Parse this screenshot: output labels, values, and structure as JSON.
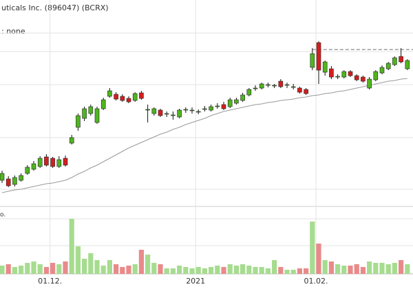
{
  "chart_data": {
    "type": "candlestick",
    "title": "uticals Inc. (896047) (BCRX)",
    "indicator_label": ": none",
    "volume_label": "o.",
    "categories": [
      null,
      null,
      null,
      null,
      null,
      null,
      null,
      null,
      "01.12.",
      null,
      null,
      null,
      null,
      null,
      null,
      null,
      null,
      null,
      null,
      null,
      null,
      null,
      null,
      null,
      null,
      null,
      null,
      null,
      null,
      null,
      null,
      "2021",
      null,
      null,
      null,
      null,
      null,
      null,
      null,
      null,
      null,
      null,
      null,
      null,
      null,
      null,
      null,
      null,
      null,
      null,
      "01.02.",
      null,
      null,
      null,
      null,
      null,
      null,
      null,
      null,
      null,
      null,
      null,
      null,
      null,
      null
    ],
    "open": [
      38,
      40,
      32,
      38,
      48,
      54,
      58,
      72,
      70,
      58,
      70,
      92,
      115,
      128,
      135,
      122,
      142,
      160,
      163,
      160,
      157,
      154,
      165,
      140,
      135,
      140,
      134,
      132,
      130,
      140,
      139,
      137,
      141,
      140,
      145,
      148,
      145,
      150,
      154,
      162,
      171,
      172,
      176,
      175,
      182,
      176,
      173,
      172,
      170,
      202,
      238,
      195,
      200,
      188,
      188,
      196,
      190,
      188,
      172,
      184,
      194,
      200,
      206,
      218,
      200
    ],
    "close": [
      48,
      30,
      42,
      45,
      57,
      62,
      70,
      60,
      58,
      68,
      60,
      100,
      132,
      142,
      145,
      142,
      155,
      168,
      156,
      154,
      152,
      164,
      157,
      141,
      142,
      132,
      135,
      133,
      140,
      141,
      140,
      138,
      142,
      145,
      146,
      142,
      155,
      155,
      162,
      170,
      172,
      178,
      177,
      176,
      174,
      177,
      174,
      166,
      164,
      222,
      198,
      210,
      188,
      189,
      196,
      190,
      184,
      182,
      185,
      196,
      202,
      208,
      216,
      210,
      212
    ],
    "high": [
      52,
      44,
      45,
      48,
      60,
      66,
      73,
      76,
      72,
      73,
      74,
      104,
      135,
      145,
      148,
      145,
      158,
      172,
      166,
      163,
      160,
      166,
      168,
      148,
      144,
      142,
      138,
      138,
      142,
      144,
      144,
      141,
      146,
      148,
      150,
      152,
      158,
      158,
      165,
      172,
      176,
      180,
      180,
      178,
      185,
      180,
      178,
      174,
      172,
      230,
      240,
      212,
      204,
      192,
      198,
      198,
      192,
      190,
      188,
      198,
      205,
      210,
      218,
      230,
      214
    ],
    "low": [
      34,
      28,
      29,
      36,
      46,
      52,
      56,
      58,
      56,
      56,
      58,
      90,
      110,
      124,
      132,
      120,
      140,
      158,
      154,
      152,
      150,
      152,
      155,
      122,
      132,
      130,
      130,
      126,
      128,
      136,
      135,
      134,
      138,
      138,
      142,
      140,
      143,
      148,
      152,
      160,
      168,
      170,
      173,
      172,
      172,
      172,
      170,
      164,
      162,
      198,
      178,
      190,
      185,
      185,
      186,
      188,
      182,
      180,
      170,
      182,
      192,
      198,
      204,
      208,
      198
    ],
    "moving_average": [
      20,
      22,
      24,
      25,
      27,
      29,
      31,
      33,
      34,
      36,
      38,
      42,
      47,
      51,
      56,
      60,
      65,
      70,
      75,
      80,
      85,
      89,
      93,
      97,
      101,
      105,
      108,
      112,
      115,
      119,
      122,
      125,
      128,
      132,
      135,
      138,
      140,
      142,
      144,
      146,
      148,
      149,
      151,
      152,
      154,
      155,
      156,
      158,
      159,
      161,
      162,
      164,
      165,
      167,
      168,
      170,
      172,
      174,
      176,
      178,
      180,
      182,
      183,
      185,
      186
    ],
    "volume": [
      12,
      14,
      10,
      12,
      16,
      18,
      14,
      10,
      16,
      14,
      18,
      80,
      40,
      22,
      30,
      20,
      12,
      20,
      14,
      10,
      12,
      14,
      35,
      28,
      16,
      14,
      8,
      8,
      12,
      10,
      8,
      10,
      8,
      10,
      12,
      10,
      14,
      12,
      14,
      12,
      10,
      10,
      8,
      20,
      10,
      6,
      6,
      8,
      8,
      76,
      44,
      20,
      18,
      14,
      12,
      12,
      14,
      10,
      18,
      16,
      16,
      14,
      16,
      20,
      14
    ],
    "reference_line": 228,
    "ylim": [
      0,
      300
    ],
    "volume_ylim": [
      0,
      100
    ],
    "price_grid": [
      25,
      100,
      177,
      225,
      252
    ],
    "volume_grid": [
      41,
      80
    ],
    "up_color": "#4fb51f",
    "down_color": "#d31f1f",
    "up_volume_color": "#a6dc8f",
    "down_volume_color": "#e98a8a",
    "ma_color": "#999999",
    "grid": true
  }
}
